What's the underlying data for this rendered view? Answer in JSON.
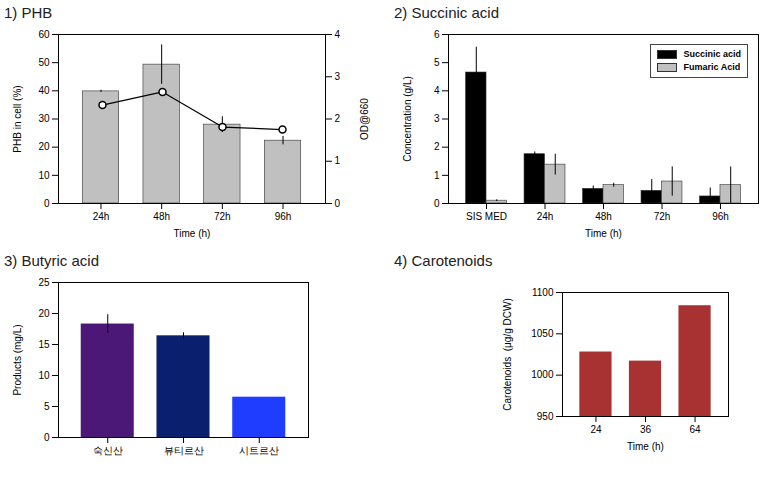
{
  "chart_data": [
    {
      "type": "bar",
      "title": "1) PHB",
      "x_label": "Time (h)",
      "y_label": "PHB in cell (%)",
      "y2_label": "OD@660",
      "categories": [
        "24h",
        "48h",
        "72h",
        "96h"
      ],
      "ylim": [
        0,
        60
      ],
      "yticks": [
        0,
        10,
        20,
        30,
        40,
        50,
        60
      ],
      "y2lim": [
        0,
        4
      ],
      "y2ticks": [
        0,
        1,
        2,
        3,
        4
      ],
      "series": [
        {
          "type": "bar",
          "color": "#c0c0c0",
          "values": [
            39.8,
            49.3,
            28.0,
            22.3
          ],
          "errors": [
            0.4,
            7.0,
            2.8,
            1.5
          ]
        },
        {
          "type": "line",
          "axis": "y2",
          "color": "#000000",
          "marker": "circle",
          "values": [
            2.33,
            2.64,
            1.81,
            1.75
          ]
        }
      ]
    },
    {
      "type": "bar",
      "title": "2) Succinic acid",
      "x_label": "Time (h)",
      "y_label": "Concentration (g/L)",
      "categories": [
        "SIS MED",
        "24h",
        "48h",
        "72h",
        "96h"
      ],
      "ylim": [
        0,
        6
      ],
      "yticks": [
        0,
        1,
        2,
        3,
        4,
        5,
        6
      ],
      "legend": "top-right",
      "series": [
        {
          "name": "Succinic acid",
          "color": "#000000",
          "values": [
            4.65,
            1.75,
            0.52,
            0.45,
            0.25
          ],
          "errors": [
            0.9,
            0.08,
            0.1,
            0.4,
            0.3
          ]
        },
        {
          "name": "Fumaric Acid",
          "color": "#c0c0c0",
          "values": [
            0.1,
            1.38,
            0.65,
            0.78,
            0.65
          ],
          "errors": [
            0.03,
            0.37,
            0.07,
            0.52,
            0.65
          ]
        }
      ]
    },
    {
      "type": "bar",
      "title": "3) Butyric acid",
      "y_label": "Products (mg/L)",
      "categories": [
        "숙신산",
        "뷰티르산",
        "시트르산"
      ],
      "values": [
        18.3,
        16.4,
        6.5
      ],
      "errors": [
        1.5,
        0.5,
        null
      ],
      "colors": [
        "#4b1877",
        "#0a1f6e",
        "#1f3dff"
      ],
      "ylim": [
        0,
        25
      ],
      "yticks": [
        0,
        5,
        10,
        15,
        20,
        25
      ]
    },
    {
      "type": "bar",
      "title": "4) Carotenoids",
      "x_label": "Time (h)",
      "y_label": "Carotenoids  (μg/g DCW)",
      "categories": [
        "24",
        "36",
        "64"
      ],
      "values": [
        1028,
        1017,
        1084
      ],
      "color": "#a83232",
      "ylim": [
        950,
        1100
      ],
      "yticks": [
        950,
        1000,
        1050,
        1100
      ]
    }
  ]
}
